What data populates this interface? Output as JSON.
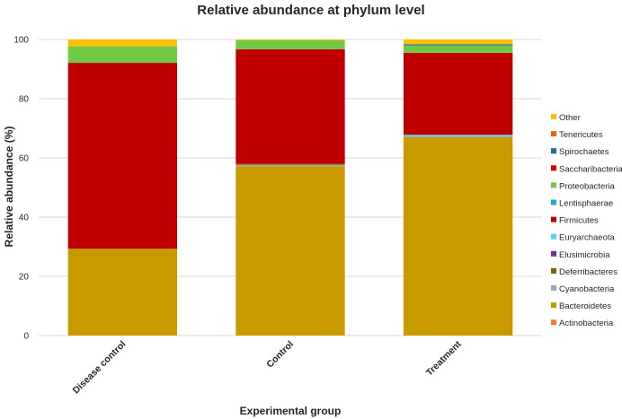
{
  "chart_data": {
    "type": "bar",
    "stacked": true,
    "title": "Relative abundance at phylum level",
    "xlabel": "Experimental group",
    "ylabel": "Relative abundance (%)",
    "ylim": [
      0,
      100
    ],
    "yticks": [
      0,
      20,
      40,
      60,
      80,
      100
    ],
    "grid": true,
    "legend_position": "right",
    "categories": [
      "Disease control",
      "Control",
      "Treatment"
    ],
    "series": [
      {
        "name": "Actinobacteria",
        "color": "#ED7D31",
        "values": [
          0.0,
          0.0,
          0.0
        ]
      },
      {
        "name": "Bacteroidetes",
        "color": "#C99A00",
        "values": [
          29.3,
          57.2,
          67.0
        ]
      },
      {
        "name": "Cyanobacteria",
        "color": "#A5A5A5",
        "values": [
          0.0,
          0.5,
          0.3
        ]
      },
      {
        "name": "Deferribacteres",
        "color": "#7F6000",
        "values": [
          0.0,
          0.3,
          0.0
        ]
      },
      {
        "name": "Elusimicrobia",
        "color": "#7030A0",
        "values": [
          0.0,
          0.0,
          0.0
        ]
      },
      {
        "name": "Euryarchaeota",
        "color": "#5BD2F5",
        "values": [
          0.0,
          0.0,
          0.5
        ]
      },
      {
        "name": "Firmicutes",
        "color": "#C00000",
        "values": [
          62.8,
          38.7,
          27.7
        ]
      },
      {
        "name": "Lentisphaerae",
        "color": "#1FA9DE",
        "values": [
          0.0,
          0.0,
          0.0
        ]
      },
      {
        "name": "Proteobacteria",
        "color": "#70C845",
        "values": [
          5.6,
          3.0,
          2.5
        ]
      },
      {
        "name": "Saccharibacteria",
        "color": "#E00000",
        "values": [
          0.0,
          0.0,
          0.0
        ]
      },
      {
        "name": "Spirochaetes",
        "color": "#1F6A9E",
        "values": [
          0.0,
          0.0,
          0.4
        ]
      },
      {
        "name": "Tenericutes",
        "color": "#F4600C",
        "values": [
          0.0,
          0.0,
          0.0
        ]
      },
      {
        "name": "Other",
        "color": "#FFC000",
        "values": [
          2.3,
          0.3,
          1.6
        ]
      }
    ]
  }
}
